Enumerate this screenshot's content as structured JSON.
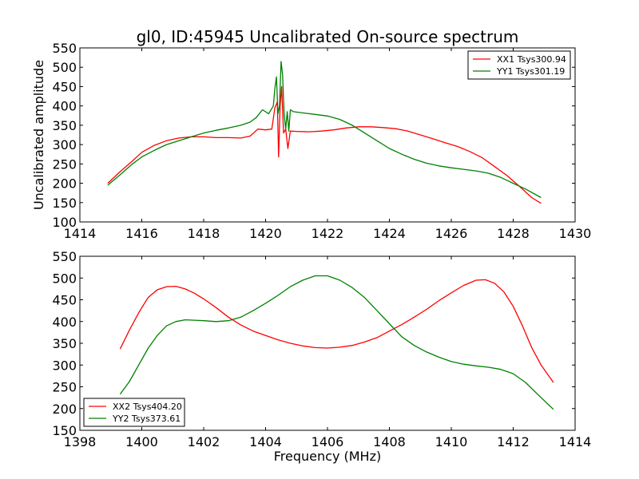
{
  "chart_data": [
    {
      "type": "line",
      "title": "gl0, ID:45945 Uncalibrated On-source spectrum",
      "xlabel": "",
      "ylabel": "Uncalibrated amplitude",
      "xlim": [
        1414,
        1430
      ],
      "ylim": [
        100,
        550
      ],
      "xticks": [
        1414,
        1416,
        1418,
        1420,
        1422,
        1424,
        1426,
        1428,
        1430
      ],
      "yticks": [
        100,
        150,
        200,
        250,
        300,
        350,
        400,
        450,
        500,
        550
      ],
      "legend_position": "top-right",
      "series": [
        {
          "name": "XX1 Tsys300.94",
          "color": "#ff0000",
          "x": [
            1414.9,
            1415.3,
            1415.7,
            1416.0,
            1416.4,
            1416.8,
            1417.2,
            1417.6,
            1418.0,
            1418.4,
            1418.8,
            1419.2,
            1419.5,
            1419.75,
            1420.0,
            1420.2,
            1420.3,
            1420.38,
            1420.42,
            1420.47,
            1420.52,
            1420.58,
            1420.65,
            1420.72,
            1420.8,
            1421.0,
            1421.4,
            1421.8,
            1422.2,
            1422.6,
            1423.0,
            1423.4,
            1423.8,
            1424.2,
            1424.6,
            1425.0,
            1425.4,
            1425.8,
            1426.2,
            1426.6,
            1427.0,
            1427.4,
            1427.8,
            1428.2,
            1428.6,
            1428.9
          ],
          "values": [
            200,
            230,
            258,
            280,
            298,
            310,
            317,
            320,
            320,
            318,
            318,
            317,
            322,
            340,
            338,
            340,
            395,
            410,
            268,
            400,
            450,
            330,
            340,
            290,
            335,
            334,
            333,
            335,
            338,
            343,
            346,
            346,
            344,
            341,
            335,
            325,
            315,
            305,
            295,
            282,
            266,
            243,
            220,
            192,
            163,
            148
          ]
        },
        {
          "name": "YY1 Tsys301.19",
          "color": "#008000",
          "x": [
            1414.9,
            1415.3,
            1415.7,
            1416.0,
            1416.4,
            1416.8,
            1417.2,
            1417.6,
            1418.0,
            1418.4,
            1418.8,
            1419.2,
            1419.5,
            1419.7,
            1419.9,
            1420.1,
            1420.25,
            1420.3,
            1420.35,
            1420.4,
            1420.45,
            1420.5,
            1420.55,
            1420.6,
            1420.65,
            1420.7,
            1420.75,
            1420.8,
            1420.9,
            1421.2,
            1421.6,
            1422.0,
            1422.4,
            1422.8,
            1423.2,
            1423.6,
            1424.0,
            1424.4,
            1424.8,
            1425.2,
            1425.6,
            1426.0,
            1426.4,
            1426.8,
            1427.2,
            1427.6,
            1428.0,
            1428.4,
            1428.9
          ],
          "values": [
            195,
            222,
            250,
            268,
            285,
            300,
            310,
            320,
            330,
            337,
            343,
            350,
            358,
            370,
            390,
            380,
            400,
            445,
            475,
            380,
            400,
            515,
            480,
            380,
            340,
            385,
            335,
            390,
            385,
            382,
            378,
            374,
            365,
            350,
            330,
            310,
            290,
            275,
            262,
            252,
            245,
            240,
            236,
            232,
            226,
            215,
            200,
            185,
            163
          ]
        }
      ]
    },
    {
      "type": "line",
      "title": "",
      "xlabel": "Frequency (MHz)",
      "ylabel": "",
      "xlim": [
        1398,
        1414
      ],
      "ylim": [
        150,
        550
      ],
      "xticks": [
        1398,
        1400,
        1402,
        1404,
        1406,
        1408,
        1410,
        1412,
        1414
      ],
      "yticks": [
        150,
        200,
        250,
        300,
        350,
        400,
        450,
        500,
        550
      ],
      "legend_position": "bottom-left",
      "series": [
        {
          "name": "XX2 Tsys404.20",
          "color": "#ff0000",
          "x": [
            1399.3,
            1399.6,
            1399.9,
            1400.2,
            1400.5,
            1400.8,
            1401.1,
            1401.4,
            1401.7,
            1402.0,
            1402.4,
            1402.8,
            1403.2,
            1403.6,
            1404.0,
            1404.4,
            1404.8,
            1405.2,
            1405.6,
            1406.0,
            1406.4,
            1406.8,
            1407.2,
            1407.6,
            1408.0,
            1408.4,
            1408.8,
            1409.2,
            1409.6,
            1410.0,
            1410.4,
            1410.8,
            1411.1,
            1411.4,
            1411.7,
            1412.0,
            1412.3,
            1412.6,
            1412.9,
            1413.3
          ],
          "values": [
            337,
            380,
            420,
            455,
            473,
            480,
            481,
            475,
            465,
            452,
            432,
            410,
            392,
            378,
            368,
            358,
            350,
            344,
            340,
            339,
            341,
            345,
            353,
            363,
            378,
            393,
            410,
            428,
            448,
            466,
            483,
            495,
            496,
            488,
            468,
            435,
            390,
            340,
            300,
            260
          ]
        },
        {
          "name": "YY2 Tsys373.61",
          "color": "#008000",
          "x": [
            1399.3,
            1399.6,
            1399.9,
            1400.2,
            1400.5,
            1400.8,
            1401.1,
            1401.4,
            1401.7,
            1402.0,
            1402.4,
            1402.8,
            1403.2,
            1403.6,
            1404.0,
            1404.4,
            1404.8,
            1405.2,
            1405.6,
            1406.0,
            1406.4,
            1406.8,
            1407.2,
            1407.6,
            1408.0,
            1408.4,
            1408.8,
            1409.2,
            1409.6,
            1410.0,
            1410.4,
            1410.8,
            1411.2,
            1411.6,
            1412.0,
            1412.4,
            1412.8,
            1413.3
          ],
          "values": [
            233,
            262,
            300,
            338,
            368,
            390,
            400,
            404,
            403,
            402,
            400,
            402,
            410,
            425,
            442,
            460,
            480,
            495,
            505,
            505,
            495,
            478,
            455,
            425,
            395,
            365,
            345,
            330,
            318,
            308,
            302,
            298,
            295,
            290,
            280,
            260,
            232,
            198
          ]
        }
      ]
    }
  ]
}
